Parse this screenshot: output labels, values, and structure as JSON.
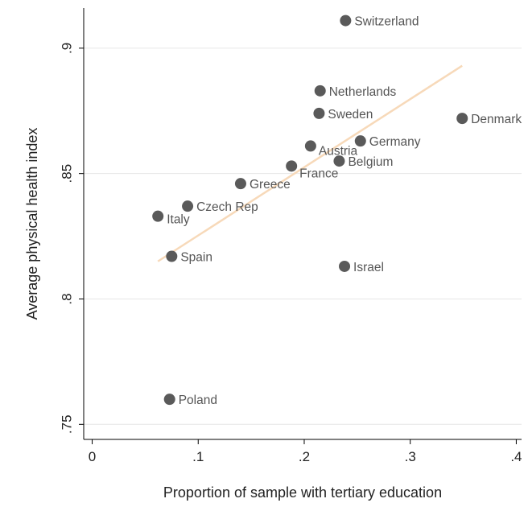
{
  "chart_data": {
    "type": "scatter",
    "xlabel": "Proportion of sample with tertiary education",
    "ylabel": "Average physical health index",
    "xlim": [
      -0.008,
      0.405
    ],
    "ylim": [
      0.744,
      0.916
    ],
    "x_ticks": [
      {
        "value": 0,
        "label": "0"
      },
      {
        "value": 0.1,
        "label": ".1"
      },
      {
        "value": 0.2,
        "label": ".2"
      },
      {
        "value": 0.3,
        "label": ".3"
      },
      {
        "value": 0.4,
        "label": ".4"
      }
    ],
    "y_ticks": [
      {
        "value": 0.75,
        "label": ".75"
      },
      {
        "value": 0.8,
        "label": ".8"
      },
      {
        "value": 0.85,
        "label": ".85"
      },
      {
        "value": 0.9,
        "label": ".9"
      }
    ],
    "grid": "horizontal",
    "points": [
      {
        "label": "Switzerland",
        "x": 0.239,
        "y": 0.911
      },
      {
        "label": "Netherlands",
        "x": 0.215,
        "y": 0.883
      },
      {
        "label": "Sweden",
        "x": 0.214,
        "y": 0.874
      },
      {
        "label": "Denmark",
        "x": 0.349,
        "y": 0.872
      },
      {
        "label": "Germany",
        "x": 0.253,
        "y": 0.863
      },
      {
        "label": "Austria",
        "x": 0.206,
        "y": 0.861
      },
      {
        "label": "Belgium",
        "x": 0.233,
        "y": 0.855
      },
      {
        "label": "France",
        "x": 0.188,
        "y": 0.853
      },
      {
        "label": "Greece",
        "x": 0.14,
        "y": 0.846
      },
      {
        "label": "Czech Rep",
        "x": 0.09,
        "y": 0.837
      },
      {
        "label": "Italy",
        "x": 0.062,
        "y": 0.833
      },
      {
        "label": "Spain",
        "x": 0.075,
        "y": 0.817
      },
      {
        "label": "Israel",
        "x": 0.238,
        "y": 0.813
      },
      {
        "label": "Poland",
        "x": 0.073,
        "y": 0.76
      }
    ],
    "fit_line": {
      "x": [
        0.062,
        0.349
      ],
      "y": [
        0.815,
        0.893
      ]
    },
    "colors": {
      "point": "#5a5a5a",
      "fit_line": "#f7d9b9",
      "grid": "#e6e6e6",
      "text": "#555555"
    }
  }
}
